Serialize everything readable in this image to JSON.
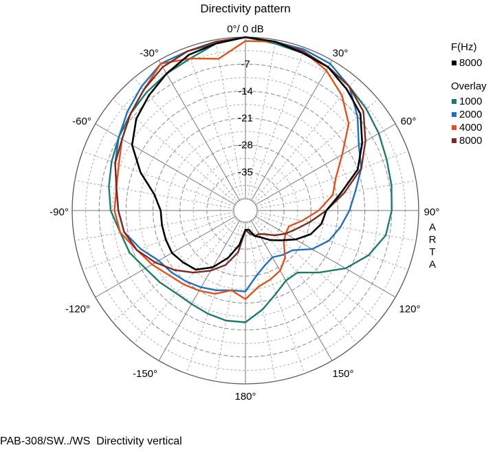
{
  "chart_data": {
    "type": "polar",
    "title": "Directivity pattern",
    "radial_unit": "dB",
    "radial_range": [
      -42,
      0
    ],
    "radial_ticks": [
      0,
      -7,
      -14,
      -21,
      -28,
      -35
    ],
    "radial_tick_labels": [
      "0°/ 0 dB",
      "-7",
      "-14",
      "-21",
      "-28",
      "-35"
    ],
    "angle_ticks": [
      0,
      30,
      60,
      90,
      120,
      150,
      180,
      -150,
      -120,
      -90,
      -60,
      -30
    ],
    "angle_tick_labels": [
      "0°/ 0 dB",
      "30°",
      "60°",
      "90°",
      "120°",
      "150°",
      "180°",
      "-150°",
      "-120°",
      "-90°",
      "-60°",
      "-30°"
    ],
    "side_text": "ARTA",
    "grid": true,
    "legend": {
      "position": "top-right",
      "main_header": "F(Hz)",
      "overlay_header": "Overlay"
    },
    "series": [
      {
        "name": "8000",
        "group": "main",
        "color": "#000000",
        "angles": [
          -180,
          -170,
          -160,
          -150,
          -140,
          -130,
          -120,
          -110,
          -100,
          -90,
          -80,
          -70,
          -60,
          -50,
          -40,
          -30,
          -20,
          -10,
          0,
          10,
          20,
          30,
          40,
          50,
          60,
          70,
          80,
          90,
          100,
          110,
          120,
          130,
          140,
          150,
          160,
          170,
          180
        ],
        "db": [
          -40,
          -36,
          -32,
          -28,
          -25,
          -24,
          -23,
          -23,
          -23,
          -23,
          -21,
          -16,
          -11,
          -8,
          -6,
          -4,
          -2,
          -1,
          0,
          -0.5,
          -1.5,
          -2,
          -4,
          -6,
          -10,
          -14,
          -20,
          -24,
          -25,
          -27,
          -30,
          -33,
          -35,
          -37,
          -38,
          -40,
          -40
        ]
      },
      {
        "name": "1000",
        "group": "overlay",
        "color": "#1b7a6e",
        "angles": [
          -180,
          -170,
          -160,
          -150,
          -140,
          -130,
          -120,
          -110,
          -100,
          -90,
          -80,
          -70,
          -60,
          -50,
          -40,
          -30,
          -20,
          -10,
          0,
          10,
          20,
          30,
          40,
          50,
          60,
          70,
          80,
          90,
          100,
          110,
          120,
          130,
          140,
          150,
          160,
          170,
          180
        ],
        "db": [
          -16,
          -16,
          -16.5,
          -17,
          -17,
          -16,
          -15,
          -13,
          -12,
          -10,
          -9,
          -8,
          -7,
          -6,
          -5,
          -4,
          -3,
          -1,
          0,
          -1,
          -1.5,
          -2,
          -3,
          -4,
          -5,
          -6,
          -6.5,
          -7,
          -8,
          -11,
          -15,
          -20,
          -24,
          -24,
          -22,
          -19,
          -16
        ]
      },
      {
        "name": "2000",
        "group": "overlay",
        "color": "#1f6fbf",
        "angles": [
          -180,
          -170,
          -160,
          -150,
          -140,
          -130,
          -120,
          -110,
          -100,
          -90,
          -80,
          -70,
          -60,
          -50,
          -40,
          -30,
          -20,
          -10,
          0,
          10,
          20,
          30,
          40,
          50,
          60,
          70,
          80,
          90,
          100,
          110,
          120,
          130,
          140,
          150,
          160,
          170,
          180
        ],
        "db": [
          -24,
          -24,
          -23,
          -22,
          -21,
          -20,
          -19,
          -16,
          -13,
          -12,
          -11,
          -9,
          -7,
          -5,
          -3,
          -1,
          -1,
          -1,
          0,
          -0.5,
          -0.5,
          -1,
          -3,
          -7,
          -11,
          -13,
          -16,
          -18,
          -20,
          -22,
          -25,
          -29,
          -30,
          -31,
          -30,
          -28,
          -24
        ]
      },
      {
        "name": "4000",
        "group": "overlay",
        "color": "#e0501c",
        "angles": [
          -180,
          -170,
          -160,
          -150,
          -140,
          -130,
          -120,
          -110,
          -100,
          -90,
          -80,
          -70,
          -60,
          -50,
          -40,
          -30,
          -20,
          -10,
          0,
          10,
          20,
          30,
          40,
          50,
          60,
          70,
          80,
          90,
          100,
          110,
          120,
          130,
          140,
          150,
          160,
          170,
          180
        ],
        "db": [
          -22,
          -24,
          -22,
          -21,
          -20,
          -19,
          -17,
          -15,
          -12,
          -11,
          -11,
          -10,
          -8,
          -6,
          -4,
          -1,
          -3,
          -5,
          -1,
          -0.5,
          -1,
          -3,
          -6,
          -10,
          -16,
          -20,
          -22,
          -26,
          -30,
          -33,
          -33,
          -32,
          -29,
          -27,
          -26,
          -25,
          -22
        ]
      },
      {
        "name": "8000",
        "group": "overlay",
        "color": "#7a2a22",
        "angles": [
          -180,
          -170,
          -160,
          -150,
          -140,
          -130,
          -120,
          -110,
          -100,
          -90,
          -80,
          -70,
          -60,
          -50,
          -40,
          -30,
          -20,
          -10,
          0,
          10,
          20,
          30,
          40,
          50,
          60,
          70,
          80,
          90,
          100,
          110,
          120,
          130,
          140,
          150,
          160,
          170,
          180
        ],
        "db": [
          -40,
          -34,
          -30,
          -27,
          -24,
          -21,
          -18,
          -15,
          -13,
          -12,
          -11,
          -9,
          -8,
          -6,
          -4,
          -2,
          -1,
          -0.5,
          0,
          -0.5,
          -1,
          -2,
          -3,
          -5,
          -9,
          -13,
          -19,
          -24,
          -28,
          -31,
          -33,
          -35,
          -37,
          -38,
          -38,
          -39,
          -40
        ]
      }
    ]
  },
  "footer": {
    "text": "PAB-308/SW../WS  Directivity vertical"
  }
}
